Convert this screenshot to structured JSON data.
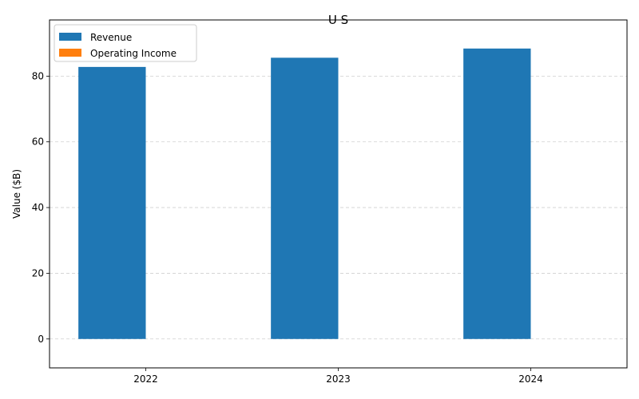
{
  "chart_data": {
    "type": "bar",
    "title": "U S",
    "xlabel": "",
    "ylabel": "Value ($B)",
    "categories": [
      "2022",
      "2023",
      "2024"
    ],
    "series": [
      {
        "name": "Revenue",
        "values": [
          82.8,
          85.6,
          88.4
        ],
        "color": "#1f77b4"
      },
      {
        "name": "Operating Income",
        "values": [
          0,
          0,
          0
        ],
        "color": "#ff7f0e"
      }
    ],
    "ylim": [
      -8.8,
      97.1
    ],
    "yticks": [
      0,
      20,
      40,
      60,
      80
    ],
    "grid": "y-dashed",
    "legend": "top-left"
  }
}
